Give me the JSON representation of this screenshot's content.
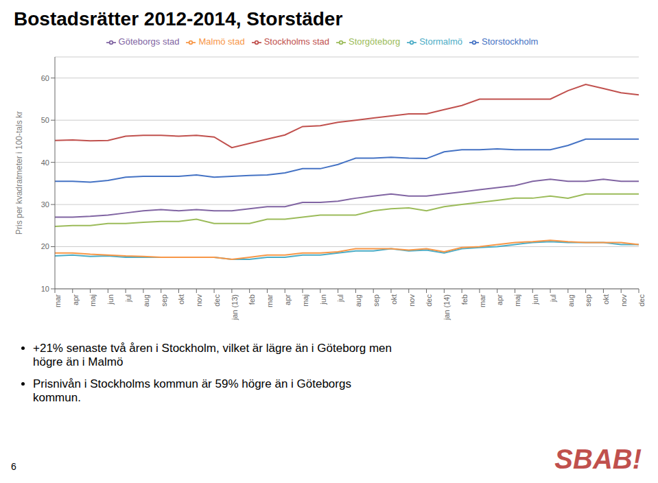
{
  "chart_data": {
    "type": "line",
    "title": "Bostadsrätter 2012-2014, Storstäder",
    "y_label": "Pris per kvadratmeter i 100-tals kr",
    "categories": [
      "mar",
      "apr",
      "maj",
      "jun",
      "jul",
      "aug",
      "sep",
      "okt",
      "nov",
      "dec",
      "jan (13)",
      "feb",
      "mar",
      "apr",
      "maj",
      "jun",
      "jul",
      "aug",
      "sep",
      "okt",
      "nov",
      "dec",
      "jan (14)",
      "feb",
      "mar",
      "apr",
      "maj",
      "jun",
      "jul",
      "aug",
      "sep",
      "okt",
      "nov",
      "dec"
    ],
    "series": [
      {
        "name": "Storstockholm",
        "color": "#4472C4",
        "values": [
          35.5,
          35.5,
          35.3,
          35.7,
          36.5,
          36.7,
          36.7,
          36.7,
          37.0,
          36.5,
          36.7,
          36.9,
          37.0,
          37.5,
          38.5,
          38.5,
          39.5,
          41.0,
          41.0,
          41.2,
          41.0,
          40.9,
          42.5,
          43.0,
          43.0,
          43.2,
          43.0,
          43.0,
          43.0,
          44.0,
          45.5,
          45.5,
          45.5,
          45.5
        ]
      },
      {
        "name": "Stockholms stad",
        "color": "#C0504D",
        "values": [
          45.2,
          45.3,
          45.1,
          45.2,
          46.2,
          46.4,
          46.4,
          46.2,
          46.4,
          46.0,
          43.5,
          44.5,
          45.5,
          46.5,
          48.5,
          48.7,
          49.5,
          50.0,
          50.5,
          51.0,
          51.5,
          51.5,
          52.5,
          53.5,
          55.0,
          55.0,
          55.0,
          55.0,
          55.0,
          57.0,
          58.5,
          57.5,
          56.5,
          56.0
        ]
      },
      {
        "name": "Storgöteborg",
        "color": "#9BBB59",
        "values": [
          24.8,
          25.0,
          25.0,
          25.5,
          25.5,
          25.8,
          26.0,
          26.0,
          26.5,
          25.5,
          25.5,
          25.5,
          26.5,
          26.5,
          27.0,
          27.5,
          27.5,
          27.5,
          28.5,
          29.0,
          29.2,
          28.5,
          29.5,
          30.0,
          30.5,
          31.0,
          31.5,
          31.5,
          32.0,
          31.5,
          32.5,
          32.5,
          32.5,
          32.5
        ]
      },
      {
        "name": "Göteborgs stad",
        "color": "#8064A2",
        "values": [
          27.0,
          27.0,
          27.2,
          27.5,
          28.0,
          28.5,
          28.8,
          28.5,
          28.8,
          28.5,
          28.5,
          29.0,
          29.5,
          29.5,
          30.5,
          30.5,
          30.8,
          31.5,
          32.0,
          32.5,
          32.0,
          32.0,
          32.5,
          33.0,
          33.5,
          34.0,
          34.5,
          35.5,
          36.0,
          35.5,
          35.5,
          36.0,
          35.5,
          35.5
        ]
      },
      {
        "name": "Stormalmö",
        "color": "#4BACC6",
        "values": [
          17.8,
          18.0,
          17.7,
          17.8,
          17.5,
          17.5,
          17.5,
          17.5,
          17.5,
          17.5,
          17.0,
          17.0,
          17.5,
          17.5,
          18.0,
          18.0,
          18.5,
          19.0,
          19.0,
          19.5,
          19.0,
          19.2,
          18.5,
          19.5,
          19.8,
          20.0,
          20.5,
          21.0,
          21.2,
          21.0,
          21.0,
          21.0,
          20.5,
          20.5
        ]
      },
      {
        "name": "Malmö stad",
        "color": "#F79646",
        "values": [
          18.5,
          18.5,
          18.2,
          18.0,
          17.8,
          17.7,
          17.5,
          17.5,
          17.5,
          17.5,
          17.0,
          17.5,
          18.0,
          18.0,
          18.5,
          18.5,
          18.8,
          19.5,
          19.5,
          19.5,
          19.2,
          19.5,
          18.8,
          19.8,
          20.0,
          20.5,
          21.0,
          21.2,
          21.5,
          21.2,
          21.0,
          21.0,
          21.0,
          20.5
        ]
      }
    ],
    "ylim": [
      10,
      65
    ],
    "yticks": [
      10,
      20,
      30,
      40,
      50,
      60
    ],
    "grid": true,
    "legend": "top",
    "annotations": [
      {
        "text": "+21% senaste två åren i Stockholm, vilket är lägre än i Göteborg men\nhögre än i Malmö",
        "style": "bullet"
      },
      {
        "text": "Prisnivån i Stockholms kommun är 59% högre än i Göteborgs\nkommun.",
        "style": "bullet"
      },
      {
        "text": "6",
        "style": "page"
      },
      {
        "text": "SBAB!",
        "style": "logo",
        "color": "#C0504D"
      }
    ]
  }
}
